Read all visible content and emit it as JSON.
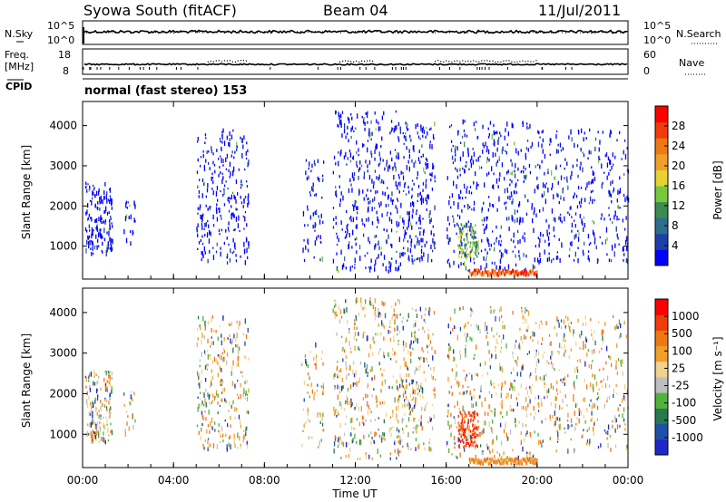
{
  "header": {
    "station": "Syowa South (fitACF)",
    "beam": "Beam 04",
    "date": "11/Jul/2011"
  },
  "noise_panel": {
    "left_label": "N.Sky",
    "right_label": "N.Search",
    "left_ticks": [
      "10^5",
      "10^0"
    ],
    "right_ticks": [
      "10^5",
      "10^0"
    ]
  },
  "freq_panel": {
    "left_label_line1": "Freq.",
    "left_label_line2": "[MHz]",
    "right_label": "Nave",
    "left_ticks": [
      "18",
      "8"
    ],
    "right_ticks": [
      "60",
      "0"
    ]
  },
  "cpid": {
    "label": "CPID",
    "text": "normal (fast stereo) 153"
  },
  "chart_data": [
    {
      "type": "heatmap",
      "name": "Power",
      "ylabel": "Slant Range [km]",
      "yticks": [
        "4000",
        "3000",
        "2000",
        "1000"
      ],
      "yrange_km": [
        180,
        4600
      ],
      "xrange_hours": [
        0,
        24
      ],
      "colorbar_label": "Power [dB]",
      "colorbar_ticks": [
        "28",
        "24",
        "20",
        "16",
        "12",
        "8",
        "4"
      ],
      "colors": [
        "#0000ff",
        "#1e3faa",
        "#2d6e8c",
        "#3c8c50",
        "#78c83c",
        "#e6d232",
        "#f0a028",
        "#f07814",
        "#f03c0a",
        "#ff0000"
      ]
    },
    {
      "type": "heatmap",
      "name": "Velocity",
      "ylabel": "Slant Range [km]",
      "yticks": [
        "4000",
        "3000",
        "2000",
        "1000"
      ],
      "yrange_km": [
        180,
        4600
      ],
      "xrange_hours": [
        0,
        24
      ],
      "colorbar_label": "Velocity [m s⁻¹]",
      "colorbar_ticks": [
        "1000",
        "500",
        "100",
        "25",
        "-25",
        "-100",
        "-500",
        "-1000"
      ],
      "colors": [
        "#1e28c8",
        "#1e50aa",
        "#287850",
        "#50b43c",
        "#bebebe",
        "#f0d28c",
        "#f0a028",
        "#f07814",
        "#f03c0a",
        "#ff0000"
      ]
    }
  ],
  "xaxis": {
    "label": "Time UT",
    "ticks": [
      "00:00",
      "04:00",
      "08:00",
      "12:00",
      "16:00",
      "20:00",
      "00:00"
    ]
  }
}
